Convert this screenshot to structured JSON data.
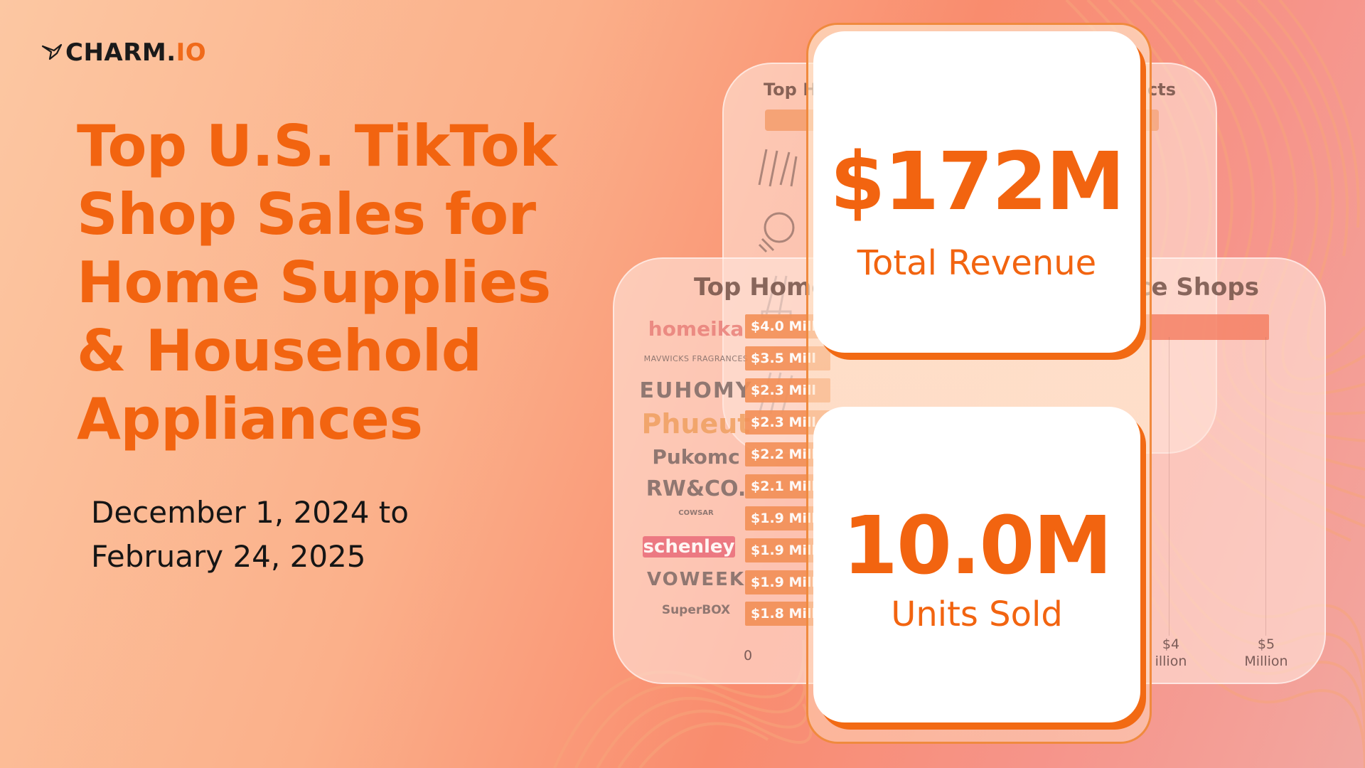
{
  "brand": {
    "name_main": "CHARM.",
    "name_accent": "IO",
    "logo_icon": "origami-bird-icon"
  },
  "headline": {
    "title": "Top U.S. TikTok Shop Sales for Home Supplies & Household Appliances",
    "date_range": "December 1, 2024 to February 24, 2025"
  },
  "stats": {
    "revenue_value": "$172M",
    "revenue_label": "Total Revenue",
    "units_value": "10.0M",
    "units_label": "Units Sold"
  },
  "background_panels": {
    "back_title_left": "Top H",
    "back_title_right": "cts",
    "front_title_left": "Top Home",
    "front_title_right": "ce Shops",
    "brands": [
      "homeika",
      "MAVWICKS FRAGRANCES",
      "EUHOMY",
      "Phueut",
      "Pukomc",
      "RW&CO.",
      "COWSAR",
      "schenley",
      "VOWEEK",
      "SuperBOX"
    ],
    "bar_labels": [
      "$4.0 Mill",
      "$3.5 Mill",
      "$2.3 Mill",
      "$2.3 Mill",
      "$2.2 Mill",
      "$2.1 Mill",
      "$1.9 Mill",
      "$1.9 Mill",
      "$1.9 Mill",
      "$1.8 Mill"
    ],
    "axis_zero": "0",
    "axis_4": "$4",
    "axis_4_unit": "illion",
    "axis_5": "$5",
    "axis_5_unit": "Million"
  },
  "colors": {
    "accent": "#f26410",
    "card_shadow": "#f26a14",
    "text_dark": "#151515"
  }
}
